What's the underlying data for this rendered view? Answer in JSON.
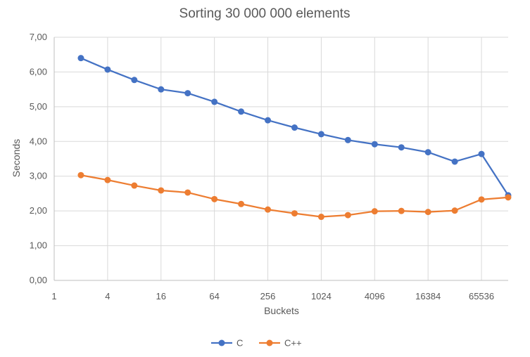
{
  "chart_data": {
    "type": "line",
    "title": "Sorting 30 000 000 elements",
    "xlabel": "Buckets",
    "ylabel": "Seconds",
    "x_scale": "log2",
    "x_ticks": [
      "1",
      "4",
      "16",
      "64",
      "256",
      "1024",
      "4096",
      "16384",
      "65536"
    ],
    "x_tick_values": [
      1,
      4,
      16,
      64,
      256,
      1024,
      4096,
      16384,
      65536
    ],
    "x": [
      2,
      4,
      8,
      16,
      32,
      64,
      128,
      256,
      512,
      1024,
      2048,
      4096,
      8192,
      16384,
      32768,
      65536,
      131072
    ],
    "y_ticks": [
      "0,00",
      "1,00",
      "2,00",
      "3,00",
      "4,00",
      "5,00",
      "6,00",
      "7,00"
    ],
    "ylim": [
      0,
      7
    ],
    "grid": true,
    "legend_position": "bottom",
    "series": [
      {
        "name": "C",
        "color": "#4472c4",
        "values": [
          6.4,
          6.07,
          5.77,
          5.5,
          5.39,
          5.14,
          4.86,
          4.61,
          4.4,
          4.21,
          4.04,
          3.92,
          3.83,
          3.69,
          3.42,
          3.64,
          2.45
        ]
      },
      {
        "name": "C++",
        "color": "#ed7d31",
        "values": [
          3.03,
          2.89,
          2.73,
          2.59,
          2.53,
          2.34,
          2.2,
          2.04,
          1.93,
          1.83,
          1.88,
          1.99,
          2.0,
          1.97,
          2.01,
          2.33,
          2.39
        ]
      }
    ]
  }
}
